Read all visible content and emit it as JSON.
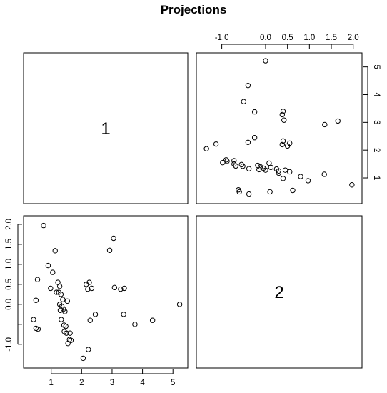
{
  "chart_data": {
    "type": "scatter",
    "title": "Projections",
    "variables": [
      "1",
      "2"
    ],
    "var1_ticks": [
      1,
      2,
      3,
      4,
      5
    ],
    "var2_ticks": [
      -1.0,
      0.0,
      0.5,
      1.0,
      1.5,
      2.0
    ],
    "var2_tick_labels": [
      "-1.0",
      "0.0",
      "0.5",
      "1.0",
      "1.5",
      "2.0"
    ],
    "var1_lim": [
      0.28,
      5.3
    ],
    "var2_lim": [
      -1.45,
      2.07
    ],
    "points": [
      {
        "x": 0.42,
        "y": -0.38
      },
      {
        "x": 0.5,
        "y": 0.1
      },
      {
        "x": 0.5,
        "y": -0.6
      },
      {
        "x": 0.55,
        "y": 0.62
      },
      {
        "x": 0.57,
        "y": -0.62
      },
      {
        "x": 0.75,
        "y": 1.97
      },
      {
        "x": 0.9,
        "y": 0.97
      },
      {
        "x": 0.98,
        "y": 0.4
      },
      {
        "x": 1.05,
        "y": 0.8
      },
      {
        "x": 1.13,
        "y": 1.34
      },
      {
        "x": 1.17,
        "y": 0.3
      },
      {
        "x": 1.22,
        "y": 0.55
      },
      {
        "x": 1.25,
        "y": 0.3
      },
      {
        "x": 1.28,
        "y": 0.45
      },
      {
        "x": 1.28,
        "y": 0.0
      },
      {
        "x": 1.3,
        "y": -0.15
      },
      {
        "x": 1.32,
        "y": 0.25
      },
      {
        "x": 1.33,
        "y": -0.38
      },
      {
        "x": 1.35,
        "y": -0.05
      },
      {
        "x": 1.38,
        "y": 0.12
      },
      {
        "x": 1.4,
        "y": -0.12
      },
      {
        "x": 1.42,
        "y": -0.52
      },
      {
        "x": 1.43,
        "y": -0.68
      },
      {
        "x": 1.45,
        "y": -0.18
      },
      {
        "x": 1.48,
        "y": -0.55
      },
      {
        "x": 1.5,
        "y": -0.72
      },
      {
        "x": 1.53,
        "y": 0.08
      },
      {
        "x": 1.55,
        "y": -0.98
      },
      {
        "x": 1.6,
        "y": -0.88
      },
      {
        "x": 1.62,
        "y": -0.72
      },
      {
        "x": 1.65,
        "y": -0.9
      },
      {
        "x": 2.05,
        "y": -1.35
      },
      {
        "x": 2.15,
        "y": 0.5
      },
      {
        "x": 2.2,
        "y": 0.38
      },
      {
        "x": 2.22,
        "y": -1.13
      },
      {
        "x": 2.25,
        "y": 0.55
      },
      {
        "x": 2.28,
        "y": -0.4
      },
      {
        "x": 2.33,
        "y": 0.4
      },
      {
        "x": 2.45,
        "y": -0.25
      },
      {
        "x": 2.92,
        "y": 1.35
      },
      {
        "x": 3.05,
        "y": 1.65
      },
      {
        "x": 3.08,
        "y": 0.42
      },
      {
        "x": 3.28,
        "y": 0.38
      },
      {
        "x": 3.38,
        "y": -0.25
      },
      {
        "x": 3.4,
        "y": 0.4
      },
      {
        "x": 3.75,
        "y": -0.5
      },
      {
        "x": 4.33,
        "y": -0.4
      },
      {
        "x": 5.22,
        "y": 0.0
      }
    ]
  }
}
